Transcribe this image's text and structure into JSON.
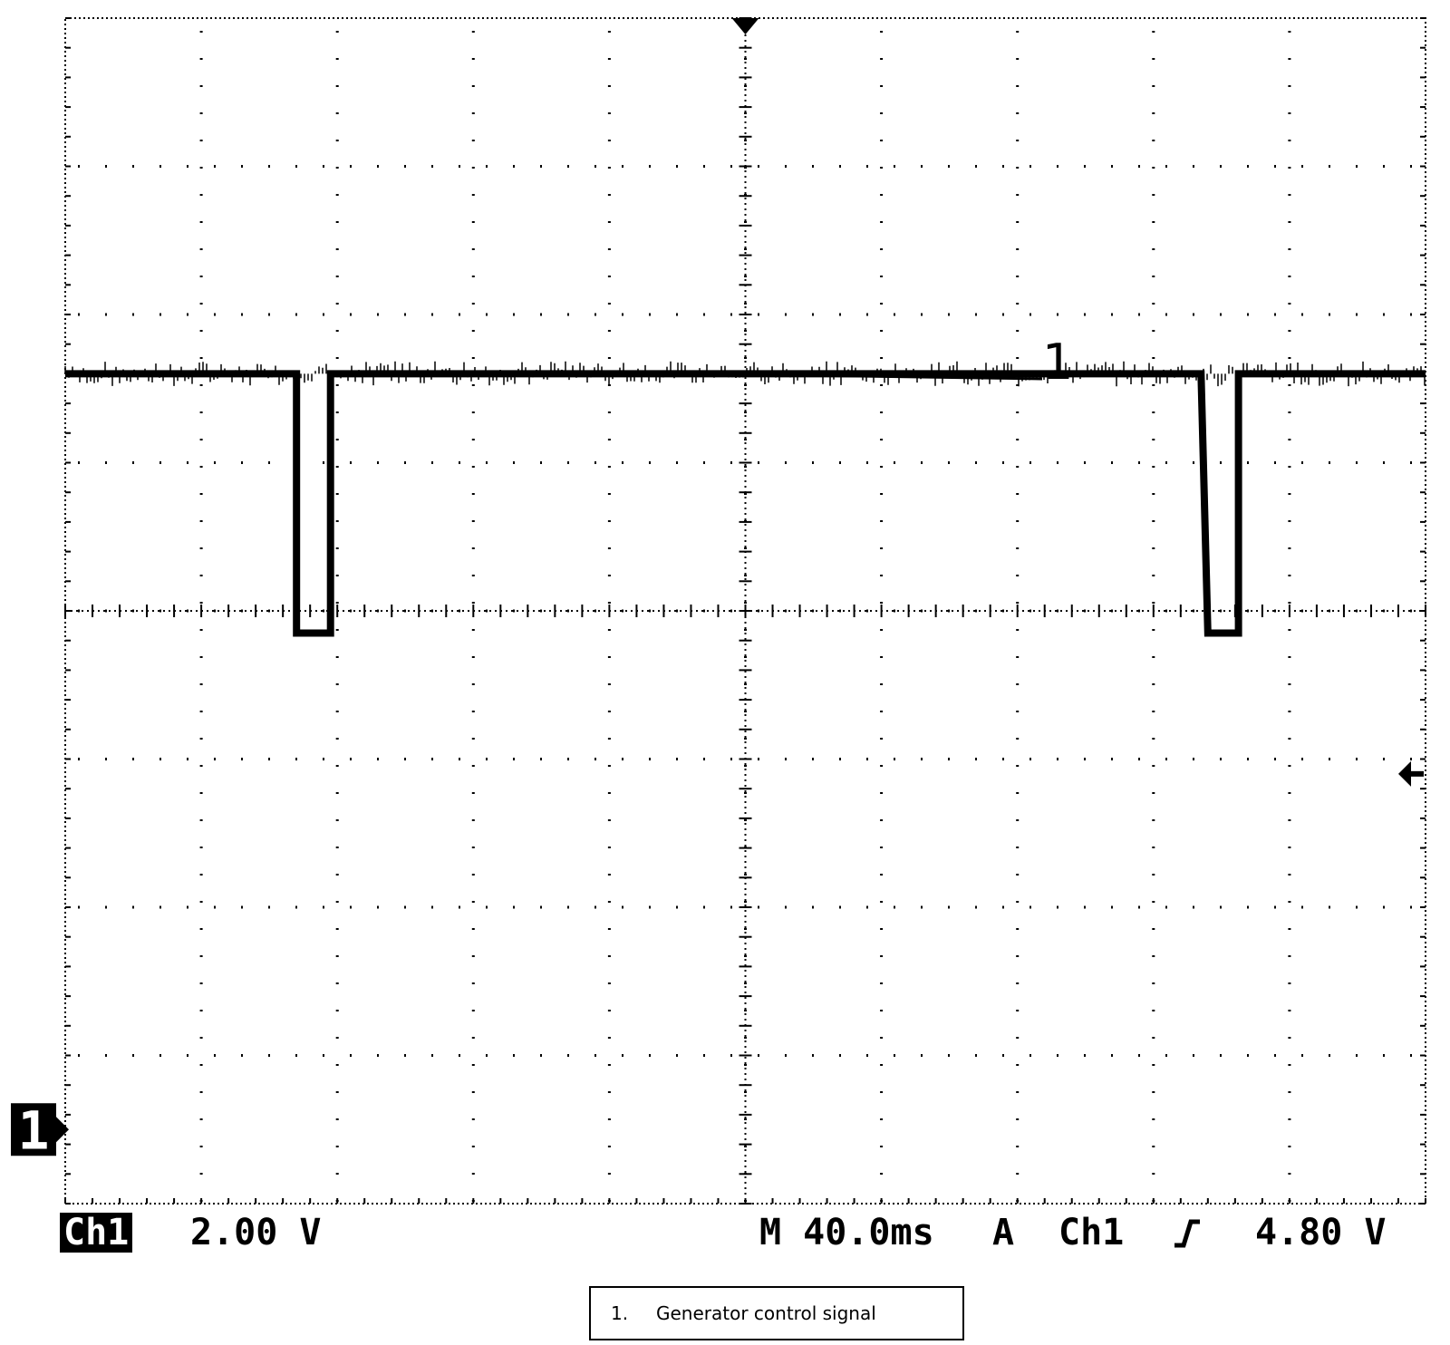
{
  "chart_data": {
    "type": "line",
    "title": "",
    "xlabel": "",
    "ylabel": "",
    "grid": true,
    "divisions": {
      "x": 10,
      "y": 8
    },
    "ylim": [
      -1,
      15
    ],
    "xlim": [
      0,
      400
    ],
    "x_unit": "ms",
    "y_unit": "V",
    "series": [
      {
        "label": "1",
        "x": [
          0,
          68,
          68,
          78,
          78,
          334,
          336,
          345,
          345,
          400
        ],
        "y": [
          10.2,
          10.2,
          6.7,
          6.7,
          10.2,
          10.2,
          6.7,
          6.7,
          10.2,
          10.2
        ]
      }
    ],
    "ground_marker": "1",
    "trigger_level_V": 4.8
  },
  "status_bar": {
    "channel": "Ch1",
    "volts_per_div": "2.00 V",
    "time_per_div": "M 40.0ms",
    "trigger_mode": "A",
    "trigger_source": "Ch1",
    "trigger_level": "4.80 V"
  },
  "legend": {
    "number": "1.",
    "text": "Generator control signal"
  },
  "colors": {
    "trace": "#000000",
    "background": "#ffffff",
    "grid": "#000000"
  }
}
